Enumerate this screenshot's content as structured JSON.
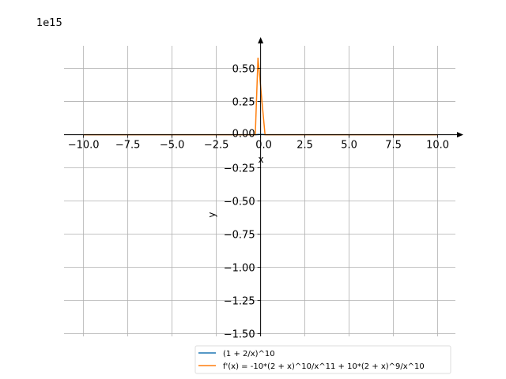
{
  "chart_data": {
    "type": "line",
    "title": "",
    "xlabel": "x",
    "ylabel": "y",
    "y_offset_label": "1e15",
    "xlim": [
      -11.1,
      11.0
    ],
    "ylim": [
      -1.52,
      0.67
    ],
    "grid": true,
    "legend_placement": "center-right",
    "x_ticks": [
      -10,
      -7.5,
      -5,
      -2.5,
      0,
      2.5,
      5,
      7.5,
      10
    ],
    "x_tick_labels": [
      "−10.0",
      "−7.5",
      "−5.0",
      "−2.5",
      "0.0",
      "2.5",
      "5.0",
      "7.5",
      "10.0"
    ],
    "y_ticks": [
      0.5,
      0.25,
      0,
      -0.25,
      -0.5,
      -0.75,
      -1,
      -1.25,
      -1.5
    ],
    "y_tick_labels": [
      "0.50",
      "0.25",
      "0.00",
      "−0.25",
      "−0.50",
      "−0.75",
      "−1.00",
      "−1.25",
      "−1.50"
    ],
    "series": [
      {
        "name": "(1 + 2/x)^10",
        "color": "#1f77b4",
        "x": [
          -10,
          -5,
          -1,
          -0.3,
          -0.1,
          0.1,
          0.3,
          1,
          5,
          10
        ],
        "y": [
          0,
          0,
          0,
          0,
          0.002,
          0.002,
          0,
          0,
          0,
          0
        ]
      },
      {
        "name": "f'(x) = -10*(2 + x)^10/x^11 + 10*(2 + x)^9/x^10",
        "color": "#ff7f0e",
        "x": [
          -10,
          -5,
          -1,
          -0.3,
          -0.15,
          0.25,
          1,
          5,
          10
        ],
        "y": [
          0,
          0,
          0,
          0,
          0.58,
          0,
          0,
          0,
          0
        ]
      }
    ]
  }
}
